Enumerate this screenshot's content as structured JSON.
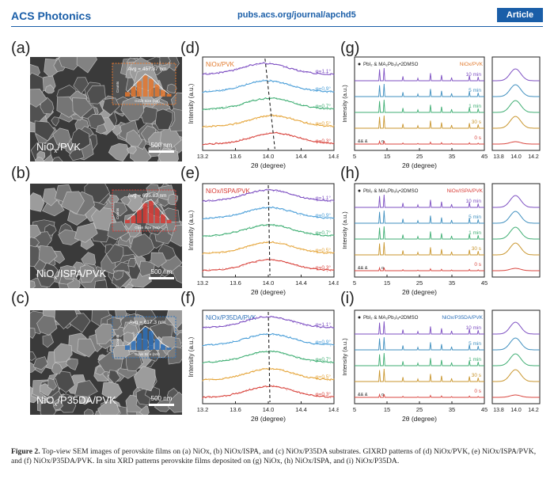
{
  "header": {
    "journal": "ACS Photonics",
    "url": "pubs.acs.org/journal/apchd5",
    "badge": "Article"
  },
  "panels": {
    "a": "(a)",
    "b": "(b)",
    "c": "(c)",
    "d": "(d)",
    "e": "(e)",
    "f": "(f)",
    "g": "(g)",
    "h": "(h)",
    "i": "(i)"
  },
  "sem": [
    {
      "label": "NiOx/PVK",
      "avg": "Avg = 457.87 nm",
      "scale": "500 nm",
      "inset_axis_y": "Counts",
      "inset_axis_x": "Grain Size (nm)",
      "accent": "#e4772e",
      "bars": [
        0.2,
        0.45,
        0.7,
        0.95,
        0.8,
        0.55,
        0.3,
        0.12
      ]
    },
    {
      "label": "NiOx/ISPA/PVK",
      "avg": "Avg = 695.83 nm",
      "scale": "500 nm",
      "inset_axis_y": "Counts",
      "inset_axis_x": "Grain Size (nm)",
      "accent": "#d83a34",
      "bars": [
        0.15,
        0.35,
        0.6,
        0.9,
        1.0,
        0.7,
        0.4,
        0.15
      ]
    },
    {
      "label": "NiOx/P35DA/PVK",
      "avg": "Avg = 617.3 nm",
      "scale": "500 nm",
      "inset_axis_y": "Counts",
      "inset_axis_x": "Grain Size (nm)",
      "accent": "#2b6fb8",
      "bars": [
        0.2,
        0.4,
        0.75,
        1.0,
        0.85,
        0.5,
        0.25,
        0.1
      ]
    }
  ],
  "chart_data": [
    {
      "type": "line",
      "title": "NiOx/PVK",
      "xlabel": "2θ (degree)",
      "ylabel": "Intensity (a.u.)",
      "xlim": [
        13.2,
        14.8
      ],
      "xticks": [
        "13.2",
        "13.6",
        "14.0",
        "14.4",
        "14.8"
      ],
      "series": [
        {
          "name": "φ=0.3°",
          "peak": 14.08,
          "color": "#d9463f"
        },
        {
          "name": "φ=0.5°",
          "peak": 14.05,
          "color": "#e5a53a"
        },
        {
          "name": "φ=0.7°",
          "peak": 14.02,
          "color": "#3fae73"
        },
        {
          "name": "φ=0.9°",
          "peak": 13.99,
          "color": "#4a9ed8"
        },
        {
          "name": "φ=1.1°",
          "peak": 13.96,
          "color": "#7d4fc2"
        }
      ]
    },
    {
      "type": "line",
      "title": "NiOx/ISPA/PVK",
      "xlabel": "2θ (degree)",
      "ylabel": "Intensity (a.u.)",
      "xlim": [
        13.2,
        14.8
      ],
      "xticks": [
        "13.2",
        "13.6",
        "14.0",
        "14.4",
        "14.8"
      ],
      "series": [
        {
          "name": "φ=0.3°",
          "peak": 14.02,
          "color": "#d9463f"
        },
        {
          "name": "φ=0.5°",
          "peak": 14.02,
          "color": "#e5a53a"
        },
        {
          "name": "φ=0.7°",
          "peak": 14.01,
          "color": "#3fae73"
        },
        {
          "name": "φ=0.9°",
          "peak": 14.01,
          "color": "#4a9ed8"
        },
        {
          "name": "φ=1.1°",
          "peak": 14.0,
          "color": "#7d4fc2"
        }
      ]
    },
    {
      "type": "line",
      "title": "NiOx/P35DA/PVK",
      "xlabel": "2θ (degree)",
      "ylabel": "Intensity (a.u.)",
      "xlim": [
        13.2,
        14.8
      ],
      "xticks": [
        "13.2",
        "13.6",
        "14.0",
        "14.4",
        "14.8"
      ],
      "series": [
        {
          "name": "φ=0.3°",
          "peak": 14.02,
          "color": "#d9463f"
        },
        {
          "name": "φ=0.5°",
          "peak": 14.02,
          "color": "#e5a53a"
        },
        {
          "name": "φ=0.7°",
          "peak": 14.01,
          "color": "#3fae73"
        },
        {
          "name": "φ=0.9°",
          "peak": 14.01,
          "color": "#4a9ed8"
        },
        {
          "name": "φ=1.1°",
          "peak": 14.0,
          "color": "#7d4fc2"
        }
      ]
    },
    {
      "type": "line",
      "title": "NiOx/PVK",
      "legend": "PbI₂ & MA₂Pb₃I₈•2DMSO",
      "xlabel": "2θ (degree)",
      "ylabel": "Intensity (a.u.)",
      "xlim": [
        5,
        45
      ],
      "xticks": [
        "5",
        "15",
        "25",
        "35",
        "45"
      ],
      "zoom_xticks": [
        "13.8",
        "14.0",
        "14.2"
      ],
      "series": [
        {
          "name": "0 s",
          "color": "#d9463f"
        },
        {
          "name": "30 s",
          "color": "#c9962e"
        },
        {
          "name": "1 min",
          "color": "#3fae73"
        },
        {
          "name": "5 min",
          "color": "#3f8fbf"
        },
        {
          "name": "10 min",
          "color": "#7d4fc2"
        }
      ]
    },
    {
      "type": "line",
      "title": "NiOx/ISPA/PVK",
      "legend": "PbI₂ & MA₂Pb₃I₈•2DMSO",
      "xlabel": "2θ (degree)",
      "ylabel": "Intensity (a.u.)",
      "xlim": [
        5,
        45
      ],
      "xticks": [
        "5",
        "15",
        "25",
        "35",
        "45"
      ],
      "zoom_xticks": [],
      "series": [
        {
          "name": "0 s",
          "color": "#d9463f"
        },
        {
          "name": "30 s",
          "color": "#c9962e"
        },
        {
          "name": "1 min",
          "color": "#3fae73"
        },
        {
          "name": "5 min",
          "color": "#3f8fbf"
        },
        {
          "name": "10 min",
          "color": "#7d4fc2"
        }
      ]
    },
    {
      "type": "line",
      "title": "NiOx/P35DA/PVK",
      "legend": "PbI₂ & MA₂Pb₃I₈•2DMSO",
      "xlabel": "2θ (degree)",
      "ylabel": "Intensity (a.u.)",
      "xlim": [
        5,
        45
      ],
      "xticks": [
        "5",
        "15",
        "25",
        "35",
        "45"
      ],
      "zoom_xticks": [
        "13.8",
        "14.0",
        "14.2"
      ],
      "series": [
        {
          "name": "0 s",
          "color": "#d9463f"
        },
        {
          "name": "30 s",
          "color": "#c9962e"
        },
        {
          "name": "1 min",
          "color": "#3fae73"
        },
        {
          "name": "5 min",
          "color": "#3f8fbf"
        },
        {
          "name": "10 min",
          "color": "#7d4fc2"
        }
      ]
    }
  ],
  "caption": {
    "label": "Figure 2.",
    "text": "Top-view SEM images of perovskite films on (a) NiOx, (b) NiOx/ISPA, and (c) NiOx/P35DA substrates. GIXRD patterns of (d) NiOx/PVK, (e) NiOx/ISPA/PVK, and (f) NiOx/P35DA/PVK. In situ XRD patterns perovskite films deposited on (g) NiOx, (h) NiOx/ISPA, and (i) NiOx/P35DA."
  }
}
